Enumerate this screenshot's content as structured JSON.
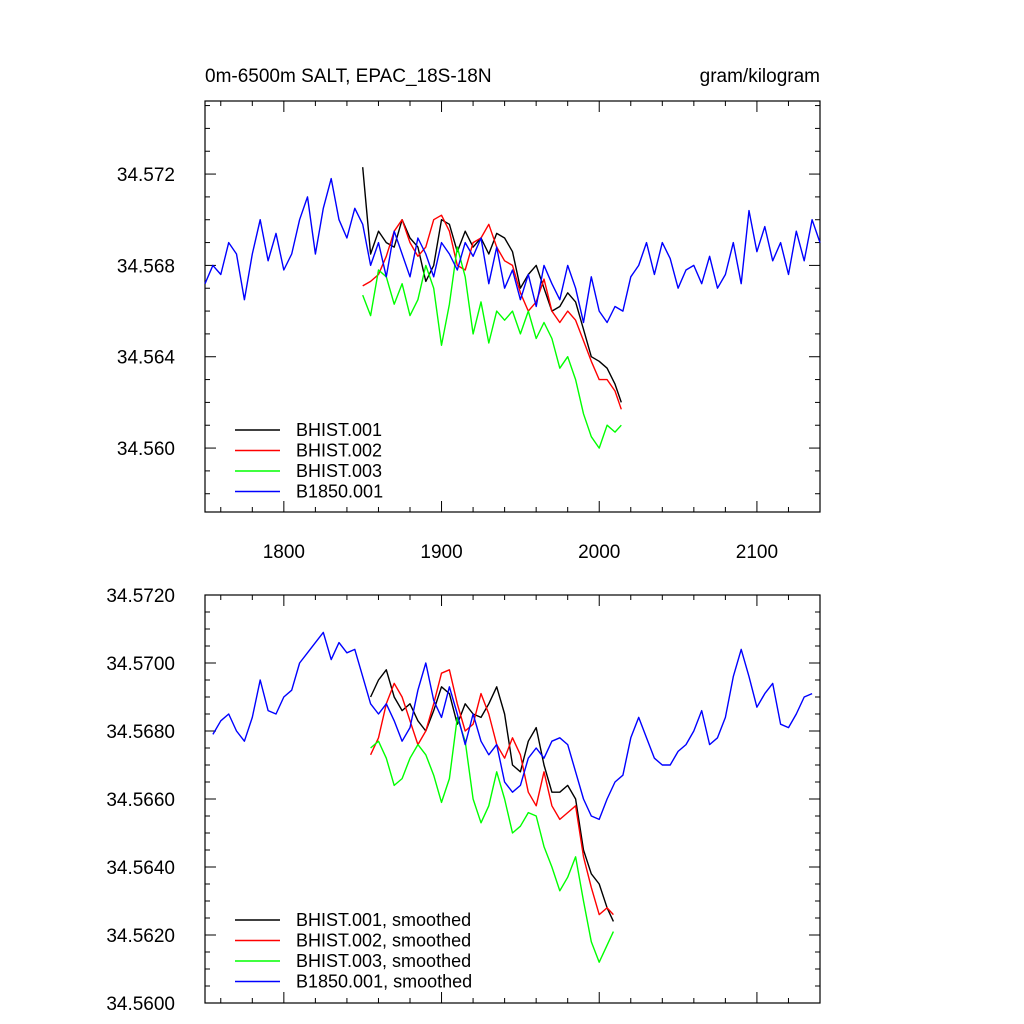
{
  "chart_data": [
    {
      "type": "line",
      "title": "0m-6500m SALT, EPAC_18S-18N",
      "units": "gram/kilogram",
      "xlim": [
        1750,
        2140
      ],
      "ylim": [
        34.5572,
        34.5752
      ],
      "xticks": [
        1800,
        1900,
        2000,
        2100
      ],
      "xtick_labels": [
        "1800",
        "1900",
        "2000",
        "2100"
      ],
      "yticks": [
        34.56,
        34.564,
        34.568,
        34.572
      ],
      "ytick_labels": [
        "34.560",
        "34.564",
        "34.568",
        "34.572"
      ],
      "legend": "lower-left",
      "series": [
        {
          "name": "BHIST.001",
          "color": "#000000",
          "x": [
            1850,
            1855,
            1860,
            1865,
            1870,
            1875,
            1880,
            1885,
            1890,
            1895,
            1900,
            1905,
            1910,
            1915,
            1920,
            1925,
            1930,
            1935,
            1940,
            1945,
            1950,
            1955,
            1960,
            1965,
            1970,
            1975,
            1980,
            1985,
            1990,
            1995,
            2000,
            2005,
            2010,
            2014
          ],
          "y": [
            34.5723,
            34.5685,
            34.5695,
            34.569,
            34.5688,
            34.57,
            34.5692,
            34.5688,
            34.5673,
            34.568,
            34.57,
            34.5698,
            34.5686,
            34.5695,
            34.5688,
            34.5692,
            34.5685,
            34.5694,
            34.5692,
            34.5686,
            34.567,
            34.5676,
            34.568,
            34.567,
            34.566,
            34.5662,
            34.5668,
            34.5664,
            34.5652,
            34.564,
            34.5638,
            34.5635,
            34.5628,
            34.562
          ]
        },
        {
          "name": "BHIST.002",
          "color": "#ff0000",
          "x": [
            1850,
            1855,
            1860,
            1865,
            1870,
            1875,
            1880,
            1885,
            1890,
            1895,
            1900,
            1905,
            1910,
            1915,
            1920,
            1925,
            1930,
            1935,
            1940,
            1945,
            1950,
            1955,
            1960,
            1965,
            1970,
            1975,
            1980,
            1985,
            1990,
            1995,
            2000,
            2005,
            2010,
            2014
          ],
          "y": [
            34.5671,
            34.5673,
            34.5676,
            34.5684,
            34.5695,
            34.57,
            34.569,
            34.5684,
            34.5688,
            34.57,
            34.5702,
            34.5695,
            34.568,
            34.5678,
            34.569,
            34.5692,
            34.5698,
            34.5688,
            34.5682,
            34.568,
            34.5668,
            34.566,
            34.5664,
            34.5674,
            34.566,
            34.5655,
            34.566,
            34.5656,
            34.5647,
            34.5638,
            34.563,
            34.563,
            34.5625,
            34.5617
          ]
        },
        {
          "name": "BHIST.003",
          "color": "#00ff00",
          "x": [
            1850,
            1855,
            1860,
            1865,
            1870,
            1875,
            1880,
            1885,
            1890,
            1895,
            1900,
            1905,
            1910,
            1915,
            1920,
            1925,
            1930,
            1935,
            1940,
            1945,
            1950,
            1955,
            1960,
            1965,
            1970,
            1975,
            1980,
            1985,
            1990,
            1995,
            2000,
            2005,
            2010,
            2014
          ],
          "y": [
            34.5667,
            34.5658,
            34.5678,
            34.5675,
            34.5663,
            34.5672,
            34.5658,
            34.5665,
            34.568,
            34.567,
            34.5645,
            34.5663,
            34.5688,
            34.5675,
            34.565,
            34.5664,
            34.5646,
            34.566,
            34.5656,
            34.566,
            34.565,
            34.566,
            34.5648,
            34.5655,
            34.5648,
            34.5635,
            34.564,
            34.563,
            34.5615,
            34.5605,
            34.56,
            34.561,
            34.5607,
            34.561
          ]
        },
        {
          "name": "B1850.001",
          "color": "#0000ff",
          "x": [
            1750,
            1755,
            1760,
            1765,
            1770,
            1775,
            1780,
            1785,
            1790,
            1795,
            1800,
            1805,
            1810,
            1815,
            1820,
            1825,
            1830,
            1835,
            1840,
            1845,
            1850,
            1855,
            1860,
            1865,
            1870,
            1875,
            1880,
            1885,
            1890,
            1895,
            1900,
            1905,
            1910,
            1915,
            1920,
            1925,
            1930,
            1935,
            1940,
            1945,
            1950,
            1955,
            1960,
            1965,
            1970,
            1975,
            1980,
            1985,
            1990,
            1995,
            2000,
            2005,
            2010,
            2015,
            2020,
            2025,
            2030,
            2035,
            2040,
            2045,
            2050,
            2055,
            2060,
            2065,
            2070,
            2075,
            2080,
            2085,
            2090,
            2095,
            2100,
            2105,
            2110,
            2115,
            2120,
            2125,
            2130,
            2135,
            2140
          ],
          "y": [
            34.5672,
            34.568,
            34.5676,
            34.569,
            34.5685,
            34.5665,
            34.5685,
            34.57,
            34.5682,
            34.5694,
            34.5678,
            34.5685,
            34.57,
            34.571,
            34.5685,
            34.5705,
            34.5718,
            34.57,
            34.5692,
            34.5705,
            34.5698,
            34.568,
            34.569,
            34.5675,
            34.5695,
            34.5685,
            34.5675,
            34.5692,
            34.5685,
            34.5675,
            34.569,
            34.5685,
            34.5678,
            34.569,
            34.5684,
            34.5692,
            34.5672,
            34.5688,
            34.567,
            34.5678,
            34.5665,
            34.5676,
            34.5662,
            34.568,
            34.5672,
            34.5665,
            34.568,
            34.567,
            34.5655,
            34.5675,
            34.566,
            34.5655,
            34.5662,
            34.566,
            34.5675,
            34.568,
            34.569,
            34.5676,
            34.569,
            34.5683,
            34.567,
            34.5678,
            34.568,
            34.5672,
            34.5684,
            34.567,
            34.5676,
            34.569,
            34.5672,
            34.5704,
            34.5686,
            34.5697,
            34.5682,
            34.569,
            34.5676,
            34.5695,
            34.5682,
            34.57,
            34.569
          ]
        }
      ]
    },
    {
      "type": "line",
      "title": "",
      "xlim": [
        1750,
        2140
      ],
      "ylim": [
        34.56,
        34.572
      ],
      "xticks": [
        1800,
        1900,
        2000,
        2100
      ],
      "yticks": [
        34.56,
        34.562,
        34.564,
        34.566,
        34.568,
        34.57,
        34.572
      ],
      "ytick_labels": [
        "34.5600",
        "34.5620",
        "34.5640",
        "34.5660",
        "34.5680",
        "34.5700",
        "34.5720"
      ],
      "legend": "lower-left",
      "series": [
        {
          "name": "BHIST.001, smoothed",
          "color": "#000000",
          "x": [
            1855,
            1860,
            1865,
            1870,
            1875,
            1880,
            1885,
            1890,
            1895,
            1900,
            1905,
            1910,
            1915,
            1920,
            1925,
            1930,
            1935,
            1940,
            1945,
            1950,
            1955,
            1960,
            1965,
            1970,
            1975,
            1980,
            1985,
            1990,
            1995,
            2000,
            2005,
            2009
          ],
          "y": [
            34.569,
            34.5695,
            34.5698,
            34.569,
            34.5686,
            34.5688,
            34.5683,
            34.568,
            34.5686,
            34.5693,
            34.5691,
            34.5682,
            34.5688,
            34.5685,
            34.5684,
            34.5688,
            34.5693,
            34.5685,
            34.567,
            34.5668,
            34.5677,
            34.5681,
            34.567,
            34.5662,
            34.5662,
            34.5664,
            34.566,
            34.5645,
            34.5638,
            34.5635,
            34.5628,
            34.5624
          ]
        },
        {
          "name": "BHIST.002, smoothed",
          "color": "#ff0000",
          "x": [
            1855,
            1860,
            1865,
            1870,
            1875,
            1880,
            1885,
            1890,
            1895,
            1900,
            1905,
            1910,
            1915,
            1920,
            1925,
            1930,
            1935,
            1940,
            1945,
            1950,
            1955,
            1960,
            1965,
            1970,
            1975,
            1980,
            1985,
            1990,
            1995,
            2000,
            2005,
            2009
          ],
          "y": [
            34.5673,
            34.5678,
            34.5688,
            34.5694,
            34.569,
            34.5683,
            34.5676,
            34.568,
            34.5688,
            34.5697,
            34.5698,
            34.5688,
            34.568,
            34.5682,
            34.5691,
            34.5685,
            34.5676,
            34.5672,
            34.5678,
            34.5673,
            34.5662,
            34.5658,
            34.5668,
            34.5658,
            34.5654,
            34.5656,
            34.5658,
            34.5643,
            34.5634,
            34.5626,
            34.5628,
            34.5626
          ]
        },
        {
          "name": "BHIST.003, smoothed",
          "color": "#00ff00",
          "x": [
            1855,
            1860,
            1865,
            1870,
            1875,
            1880,
            1885,
            1890,
            1895,
            1900,
            1905,
            1910,
            1915,
            1920,
            1925,
            1930,
            1935,
            1940,
            1945,
            1950,
            1955,
            1960,
            1965,
            1970,
            1975,
            1980,
            1985,
            1990,
            1995,
            2000,
            2005,
            2009
          ],
          "y": [
            34.5675,
            34.5677,
            34.5672,
            34.5664,
            34.5666,
            34.5672,
            34.5676,
            34.5673,
            34.5667,
            34.5659,
            34.5666,
            34.5684,
            34.5677,
            34.566,
            34.5653,
            34.5658,
            34.5668,
            34.566,
            34.565,
            34.5652,
            34.5656,
            34.5655,
            34.5646,
            34.564,
            34.5633,
            34.5637,
            34.5643,
            34.563,
            34.5618,
            34.5612,
            34.5617,
            34.5621
          ]
        },
        {
          "name": "B1850.001, smoothed",
          "color": "#0000ff",
          "x": [
            1755,
            1760,
            1765,
            1770,
            1775,
            1780,
            1785,
            1790,
            1795,
            1800,
            1805,
            1810,
            1815,
            1820,
            1825,
            1830,
            1835,
            1840,
            1845,
            1850,
            1855,
            1860,
            1865,
            1870,
            1875,
            1880,
            1885,
            1890,
            1895,
            1900,
            1905,
            1910,
            1915,
            1920,
            1925,
            1930,
            1935,
            1940,
            1945,
            1950,
            1955,
            1960,
            1965,
            1970,
            1975,
            1980,
            1985,
            1990,
            1995,
            2000,
            2005,
            2010,
            2015,
            2020,
            2025,
            2030,
            2035,
            2040,
            2045,
            2050,
            2055,
            2060,
            2065,
            2070,
            2075,
            2080,
            2085,
            2090,
            2095,
            2100,
            2105,
            2110,
            2115,
            2120,
            2125,
            2130,
            2135
          ],
          "y": [
            34.5679,
            34.5683,
            34.5685,
            34.568,
            34.5677,
            34.5684,
            34.5695,
            34.5686,
            34.5685,
            34.569,
            34.5692,
            34.57,
            34.5703,
            34.5706,
            34.5709,
            34.5701,
            34.5706,
            34.5703,
            34.5704,
            34.5696,
            34.5688,
            34.5685,
            34.5688,
            34.5683,
            34.5677,
            34.5681,
            34.5692,
            34.57,
            34.5689,
            34.5684,
            34.5693,
            34.5685,
            34.5676,
            34.5685,
            34.5677,
            34.5673,
            34.5676,
            34.5665,
            34.5662,
            34.5664,
            34.5672,
            34.5675,
            34.5672,
            34.5677,
            34.5678,
            34.5676,
            34.5668,
            34.566,
            34.5655,
            34.5654,
            34.566,
            34.5665,
            34.5667,
            34.5678,
            34.5684,
            34.5678,
            34.5672,
            34.567,
            34.567,
            34.5674,
            34.5676,
            34.568,
            34.5686,
            34.5676,
            34.5678,
            34.5684,
            34.5696,
            34.5704,
            34.5696,
            34.5687,
            34.5691,
            34.5694,
            34.5682,
            34.5681,
            34.5685,
            34.569,
            34.5691
          ]
        }
      ]
    }
  ]
}
